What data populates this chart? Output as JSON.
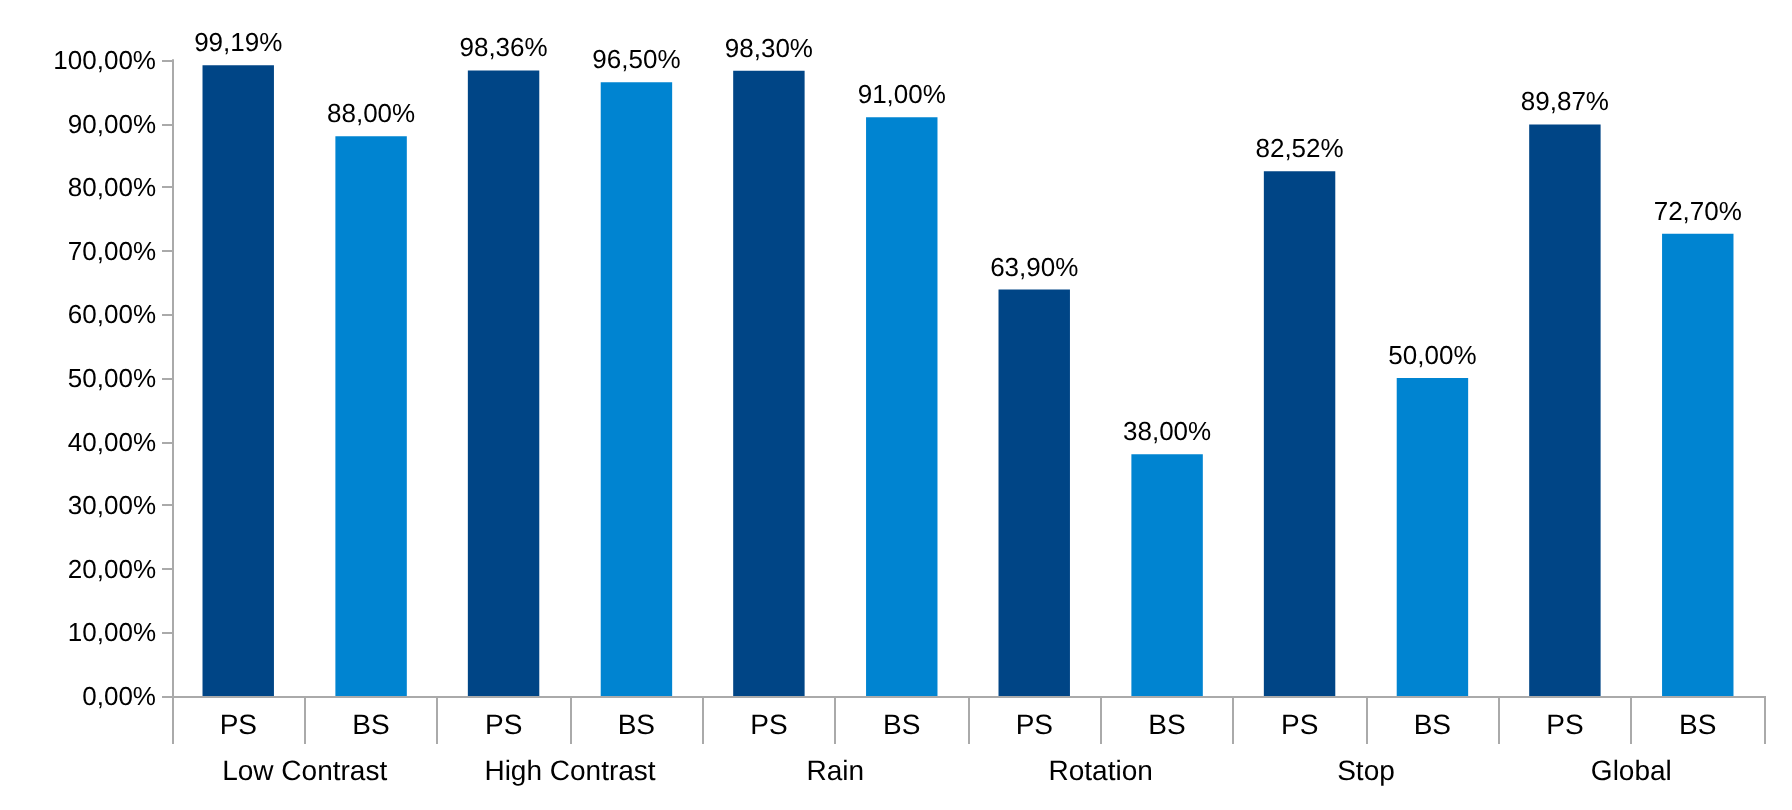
{
  "chart_data": {
    "type": "bar",
    "categories": [
      "Low Contrast",
      "High Contrast",
      "Rain",
      "Rotation",
      "Stop",
      "Global"
    ],
    "series": [
      {
        "name": "PS",
        "color": "#004586",
        "values": [
          99.19,
          98.36,
          98.3,
          63.9,
          82.52,
          89.87
        ],
        "value_labels": [
          "99,19%",
          "98,36%",
          "98,30%",
          "63,90%",
          "82,52%",
          "89,87%"
        ]
      },
      {
        "name": "BS",
        "color": "#0084d1",
        "values": [
          88,
          96.5,
          91,
          38,
          50,
          72.7
        ],
        "value_labels": [
          "88,00%",
          "96,50%",
          "91,00%",
          "38,00%",
          "50,00%",
          "72,70%"
        ]
      }
    ],
    "ylim": [
      0,
      100
    ],
    "yticks": [
      {
        "value": 0,
        "label": "0,00%"
      },
      {
        "value": 10,
        "label": "10,00%"
      },
      {
        "value": 20,
        "label": "20,00%"
      },
      {
        "value": 30,
        "label": "30,00%"
      },
      {
        "value": 40,
        "label": "40,00%"
      },
      {
        "value": 50,
        "label": "50,00%"
      },
      {
        "value": 60,
        "label": "60,00%"
      },
      {
        "value": 70,
        "label": "70,00%"
      },
      {
        "value": 80,
        "label": "80,00%"
      },
      {
        "value": 90,
        "label": "90,00%"
      },
      {
        "value": 100,
        "label": "100,00%"
      }
    ],
    "grid": false
  }
}
